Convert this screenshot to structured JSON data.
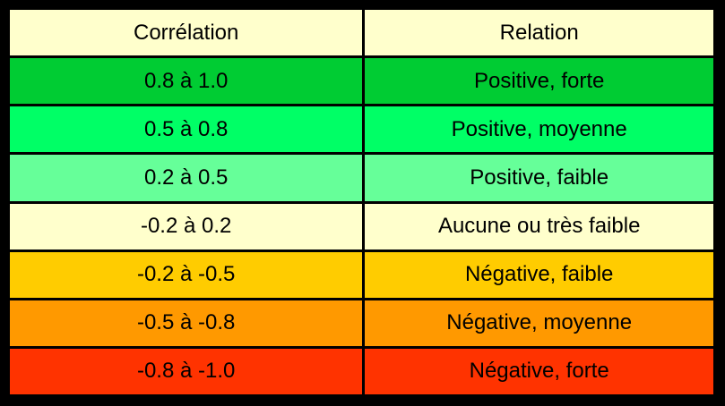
{
  "table": {
    "name": "correlation-strength-reference",
    "text_color": "#000000",
    "border_color": "#000000",
    "header": {
      "correlation_label": "Corrélation",
      "relation_label": "Relation",
      "color": "#FFFFCC"
    },
    "rows": [
      {
        "correlation": "0.8 à 1.0",
        "relation": "Positive, forte",
        "color": "#00CC33"
      },
      {
        "correlation": "0.5 à 0.8",
        "relation": "Positive, moyenne",
        "color": "#00FF66"
      },
      {
        "correlation": "0.2 à 0.5",
        "relation": "Positive, faible",
        "color": "#66FF99"
      },
      {
        "correlation": "-0.2 à 0.2",
        "relation": "Aucune ou très faible",
        "color": "#FFFFCC"
      },
      {
        "correlation": "-0.2 à -0.5",
        "relation": "Négative, faible",
        "color": "#FFCC00"
      },
      {
        "correlation": "-0.5 à -0.8",
        "relation": "Négative, moyenne",
        "color": "#FF9900"
      },
      {
        "correlation": "-0.8 à -1.0",
        "relation": "Négative, forte",
        "color": "#FF3300"
      }
    ]
  }
}
